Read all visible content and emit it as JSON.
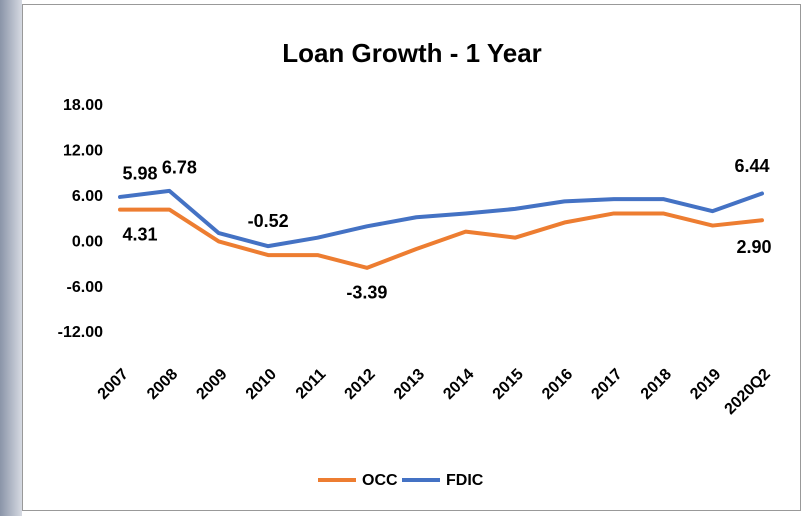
{
  "chart_data": {
    "type": "line",
    "title": "Loan Growth - 1 Year",
    "categories": [
      "2007",
      "2008",
      "2009",
      "2010",
      "2011",
      "2012",
      "2013",
      "2014",
      "2015",
      "2016",
      "2017",
      "2018",
      "2019",
      "2020Q2"
    ],
    "series": [
      {
        "name": "OCC",
        "color": "#ED7D31",
        "values": [
          4.31,
          4.31,
          0.1,
          -1.7,
          -1.7,
          -3.39,
          -0.9,
          1.4,
          0.6,
          2.6,
          3.8,
          3.8,
          2.2,
          2.9
        ],
        "value_labels": [
          "4.31",
          null,
          null,
          null,
          null,
          "-3.39",
          null,
          null,
          null,
          null,
          null,
          null,
          null,
          "2.90"
        ]
      },
      {
        "name": "FDIC",
        "color": "#4472C4",
        "values": [
          5.98,
          6.78,
          1.2,
          -0.52,
          0.6,
          2.1,
          3.3,
          3.8,
          4.4,
          5.4,
          5.7,
          5.7,
          4.1,
          6.44
        ],
        "value_labels": [
          "5.98",
          "6.78",
          null,
          "-0.52",
          null,
          null,
          null,
          null,
          null,
          null,
          null,
          null,
          null,
          "6.44"
        ]
      }
    ],
    "ylim": [
      -12,
      18
    ],
    "yticks": [
      {
        "value": -12,
        "label": "-12.00"
      },
      {
        "value": -6,
        "label": "-6.00"
      },
      {
        "value": 0,
        "label": "0.00"
      },
      {
        "value": 6,
        "label": "6.00"
      },
      {
        "value": 12,
        "label": "12.00"
      },
      {
        "value": 18,
        "label": "18.00"
      }
    ],
    "grid": false,
    "legend": "bottom"
  }
}
